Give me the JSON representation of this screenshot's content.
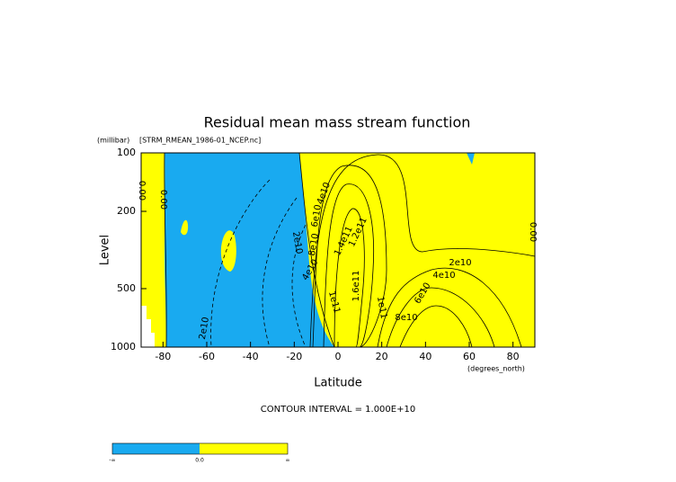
{
  "chart_data": {
    "type": "contour",
    "title": "Residual mean mass stream function",
    "subtitle": "[STRM_RMEAN_1986-01_NCEP.nc]",
    "y_units": "(millibar)",
    "x_units": "(degrees_north)",
    "ylabel": "Level",
    "xlabel": "Latitude",
    "note": "CONTOUR INTERVAL = 1.000E+10",
    "xlim": [
      -90,
      90
    ],
    "xticks": [
      -80,
      -60,
      -40,
      -20,
      0,
      20,
      40,
      60,
      80
    ],
    "ylim": [
      1000,
      100
    ],
    "yticks": [
      100,
      200,
      500,
      1000
    ],
    "y_log": true,
    "negative_color": "#19aaf0",
    "positive_color": "#ffff00",
    "contour_labels": [
      "0.00",
      "0.00",
      "0.00",
      "2e10",
      "4e10",
      "2e10",
      "4e10",
      "6e10",
      "8e10",
      "1.2e11",
      "1.4e11",
      "1.6e11",
      "1e11",
      "1e11",
      "8e10",
      "6e10",
      "4e10",
      "2e10"
    ],
    "colorbar_labels": [
      "-∞",
      "0.0",
      "∞"
    ]
  }
}
